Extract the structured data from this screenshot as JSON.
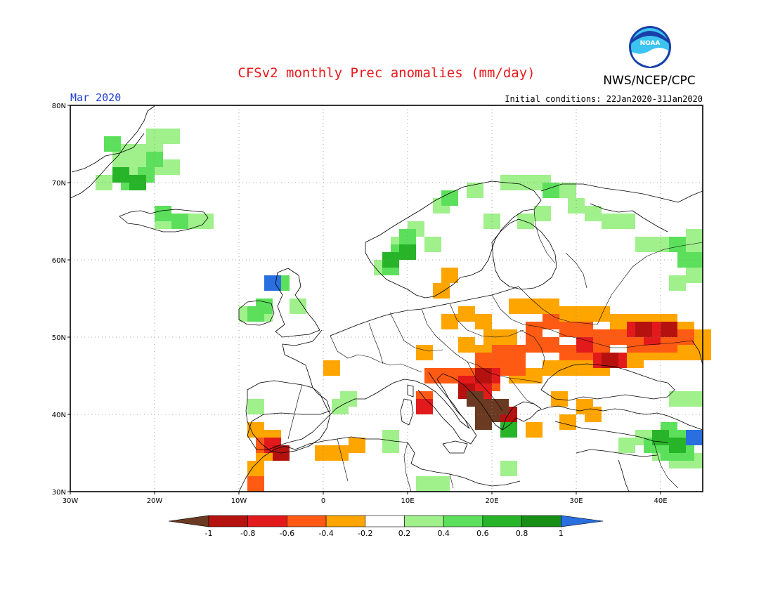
{
  "title": "CFSv2 monthly Prec anomalies (mm/day)",
  "organization": "NWS/NCEP/CPC",
  "logo_text": "NOAA",
  "valid_month": "Mar 2020",
  "initial_conditions": "Initial conditions: 22Jan2020-31Jan2020",
  "map": {
    "lon_range": [
      -30,
      45
    ],
    "lat_range": [
      30,
      80
    ],
    "lat_ticks": [
      "30N",
      "40N",
      "50N",
      "60N",
      "70N",
      "80N"
    ],
    "lon_ticks": [
      "30W",
      "20W",
      "10W",
      "0",
      "10E",
      "20E",
      "30E",
      "40E"
    ]
  },
  "colorbar": {
    "labels": [
      "-1",
      "-0.8",
      "-0.6",
      "-0.4",
      "-0.2",
      "0.2",
      "0.4",
      "0.6",
      "0.8",
      "1"
    ],
    "colors": [
      "#6b3a22",
      "#b5120f",
      "#e31a1c",
      "#ff5a14",
      "#ffa500",
      "#ffffff",
      "#a0f08c",
      "#5ce05c",
      "#28b428",
      "#178f17",
      "#2a6fe0"
    ]
  },
  "anomaly_regions": [
    {
      "bin": 6,
      "cells": [
        [
          -24,
          74
        ],
        [
          -22,
          74
        ],
        [
          -20,
          74
        ],
        [
          -22,
          72
        ],
        [
          -20,
          72
        ],
        [
          -26,
          70
        ],
        [
          -22,
          70
        ],
        [
          -24,
          72
        ],
        [
          -18,
          76
        ],
        [
          -20,
          76
        ],
        [
          -18,
          72
        ],
        [
          -19,
          65
        ],
        [
          -16,
          65
        ],
        [
          -14,
          65
        ],
        [
          -3,
          54
        ],
        [
          -7,
          53
        ],
        [
          -9,
          53
        ],
        [
          -5,
          57
        ],
        [
          7,
          59
        ],
        [
          9,
          62
        ],
        [
          11,
          64
        ],
        [
          14,
          67
        ],
        [
          18,
          69
        ],
        [
          22,
          70
        ],
        [
          24,
          70
        ],
        [
          26,
          70
        ],
        [
          29,
          69
        ],
        [
          30,
          67
        ],
        [
          32,
          66
        ],
        [
          34,
          65
        ],
        [
          36,
          65
        ],
        [
          38,
          62
        ],
        [
          40,
          62
        ],
        [
          42,
          62
        ],
        [
          44,
          63
        ],
        [
          44,
          61
        ],
        [
          44,
          58
        ],
        [
          42,
          57
        ],
        [
          24,
          65
        ],
        [
          26,
          66
        ],
        [
          20,
          65
        ],
        [
          13,
          62
        ],
        [
          44,
          42
        ],
        [
          42,
          42
        ],
        [
          38,
          37
        ],
        [
          36,
          36
        ],
        [
          40,
          35
        ],
        [
          42,
          34
        ],
        [
          44,
          34
        ],
        [
          12,
          31
        ],
        [
          14,
          31
        ],
        [
          8,
          36
        ],
        [
          8,
          37
        ],
        [
          3,
          42
        ],
        [
          2,
          41
        ],
        [
          -8,
          41
        ],
        [
          22,
          33
        ]
      ]
    },
    {
      "bin": 7,
      "cells": [
        [
          -23,
          70
        ],
        [
          -21,
          71
        ],
        [
          -25,
          75
        ],
        [
          -20,
          73
        ],
        [
          -17,
          65
        ],
        [
          -19,
          66
        ],
        [
          -8,
          53
        ],
        [
          -7,
          54
        ],
        [
          -5,
          57
        ],
        [
          8,
          59
        ],
        [
          9,
          61
        ],
        [
          10,
          63
        ],
        [
          15,
          68
        ],
        [
          27,
          69
        ],
        [
          42,
          62
        ],
        [
          43,
          60
        ],
        [
          44,
          60
        ],
        [
          22,
          39
        ],
        [
          41,
          38
        ],
        [
          43,
          37
        ],
        [
          39,
          36
        ],
        [
          41,
          35
        ],
        [
          43,
          35
        ]
      ]
    },
    {
      "bin": 8,
      "cells": [
        [
          -24,
          71
        ],
        [
          -22,
          70
        ],
        [
          8,
          60
        ],
        [
          10,
          61
        ],
        [
          22,
          38
        ],
        [
          42,
          36
        ],
        [
          40,
          37
        ]
      ]
    },
    {
      "bin": 10,
      "cells": [
        [
          -6,
          57
        ],
        [
          44,
          37
        ]
      ]
    },
    {
      "bin": 4,
      "cells": [
        [
          23,
          54
        ],
        [
          25,
          54
        ],
        [
          27,
          54
        ],
        [
          29,
          53
        ],
        [
          31,
          53
        ],
        [
          33,
          53
        ],
        [
          35,
          52
        ],
        [
          37,
          52
        ],
        [
          39,
          52
        ],
        [
          41,
          52
        ],
        [
          43,
          51
        ],
        [
          45,
          50
        ],
        [
          45,
          48
        ],
        [
          43,
          48
        ],
        [
          41,
          48
        ],
        [
          39,
          48
        ],
        [
          37,
          47
        ],
        [
          35,
          47
        ],
        [
          33,
          46
        ],
        [
          31,
          46
        ],
        [
          29,
          46
        ],
        [
          27,
          46
        ],
        [
          25,
          45
        ],
        [
          23,
          45
        ],
        [
          21,
          46
        ],
        [
          19,
          48
        ],
        [
          17,
          49
        ],
        [
          19,
          52
        ],
        [
          17,
          53
        ],
        [
          15,
          52
        ],
        [
          20,
          50
        ],
        [
          22,
          50
        ],
        [
          15,
          58
        ],
        [
          14,
          56
        ],
        [
          12,
          48
        ],
        [
          1,
          46
        ],
        [
          -8,
          38
        ],
        [
          -6,
          37
        ],
        [
          -7,
          35
        ],
        [
          -8,
          33
        ],
        [
          0,
          35
        ],
        [
          2,
          35
        ],
        [
          4,
          36
        ],
        [
          28,
          42
        ],
        [
          31,
          41
        ],
        [
          29,
          39
        ],
        [
          25,
          38
        ],
        [
          32,
          40
        ]
      ]
    },
    {
      "bin": 3,
      "cells": [
        [
          27,
          52
        ],
        [
          29,
          51
        ],
        [
          31,
          51
        ],
        [
          33,
          50
        ],
        [
          35,
          50
        ],
        [
          37,
          49
        ],
        [
          39,
          49
        ],
        [
          41,
          49
        ],
        [
          43,
          50
        ],
        [
          25,
          51
        ],
        [
          25,
          49
        ],
        [
          27,
          49
        ],
        [
          29,
          48
        ],
        [
          31,
          48
        ],
        [
          33,
          48
        ],
        [
          23,
          48
        ],
        [
          21,
          48
        ],
        [
          19,
          47
        ],
        [
          21,
          46
        ],
        [
          23,
          46
        ],
        [
          17,
          45
        ],
        [
          15,
          45
        ],
        [
          13,
          45
        ],
        [
          12,
          42
        ],
        [
          20,
          44
        ],
        [
          -8,
          31
        ],
        [
          -7,
          36
        ]
      ]
    },
    {
      "bin": 2,
      "cells": [
        [
          37,
          51
        ],
        [
          39,
          50
        ],
        [
          40,
          51
        ],
        [
          31,
          49
        ],
        [
          33,
          47
        ],
        [
          35,
          47
        ],
        [
          17,
          44
        ],
        [
          19,
          43
        ],
        [
          20,
          45
        ],
        [
          12,
          41
        ],
        [
          21,
          40
        ],
        [
          -6,
          36
        ]
      ]
    },
    {
      "bin": 1,
      "cells": [
        [
          38,
          51
        ],
        [
          41,
          51
        ],
        [
          34,
          47
        ],
        [
          19,
          45
        ],
        [
          17,
          43
        ],
        [
          22,
          40
        ],
        [
          -5,
          35
        ]
      ]
    },
    {
      "bin": 0,
      "cells": [
        [
          18,
          42
        ],
        [
          19,
          41
        ],
        [
          20,
          40
        ],
        [
          21,
          41
        ],
        [
          19,
          39
        ]
      ]
    }
  ]
}
